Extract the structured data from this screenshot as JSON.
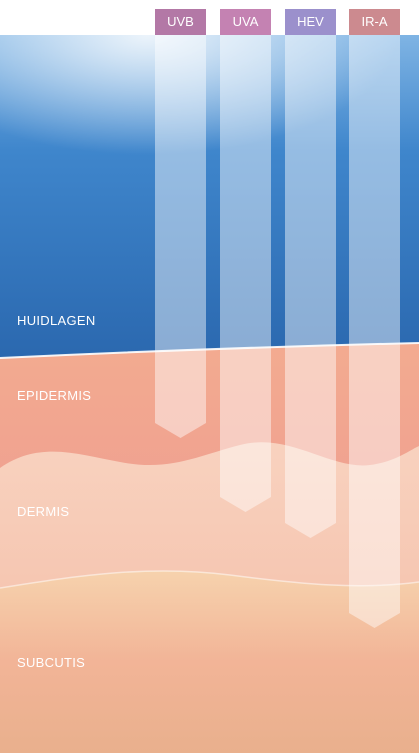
{
  "beams": [
    {
      "label": "UVB"
    },
    {
      "label": "UVA"
    },
    {
      "label": "HEV"
    },
    {
      "label": "IR-A"
    }
  ],
  "layers": [
    {
      "label": "HUIDLAGEN"
    },
    {
      "label": "EPIDERMIS"
    },
    {
      "label": "DERMIS"
    },
    {
      "label": "SUBCUTIS"
    }
  ]
}
